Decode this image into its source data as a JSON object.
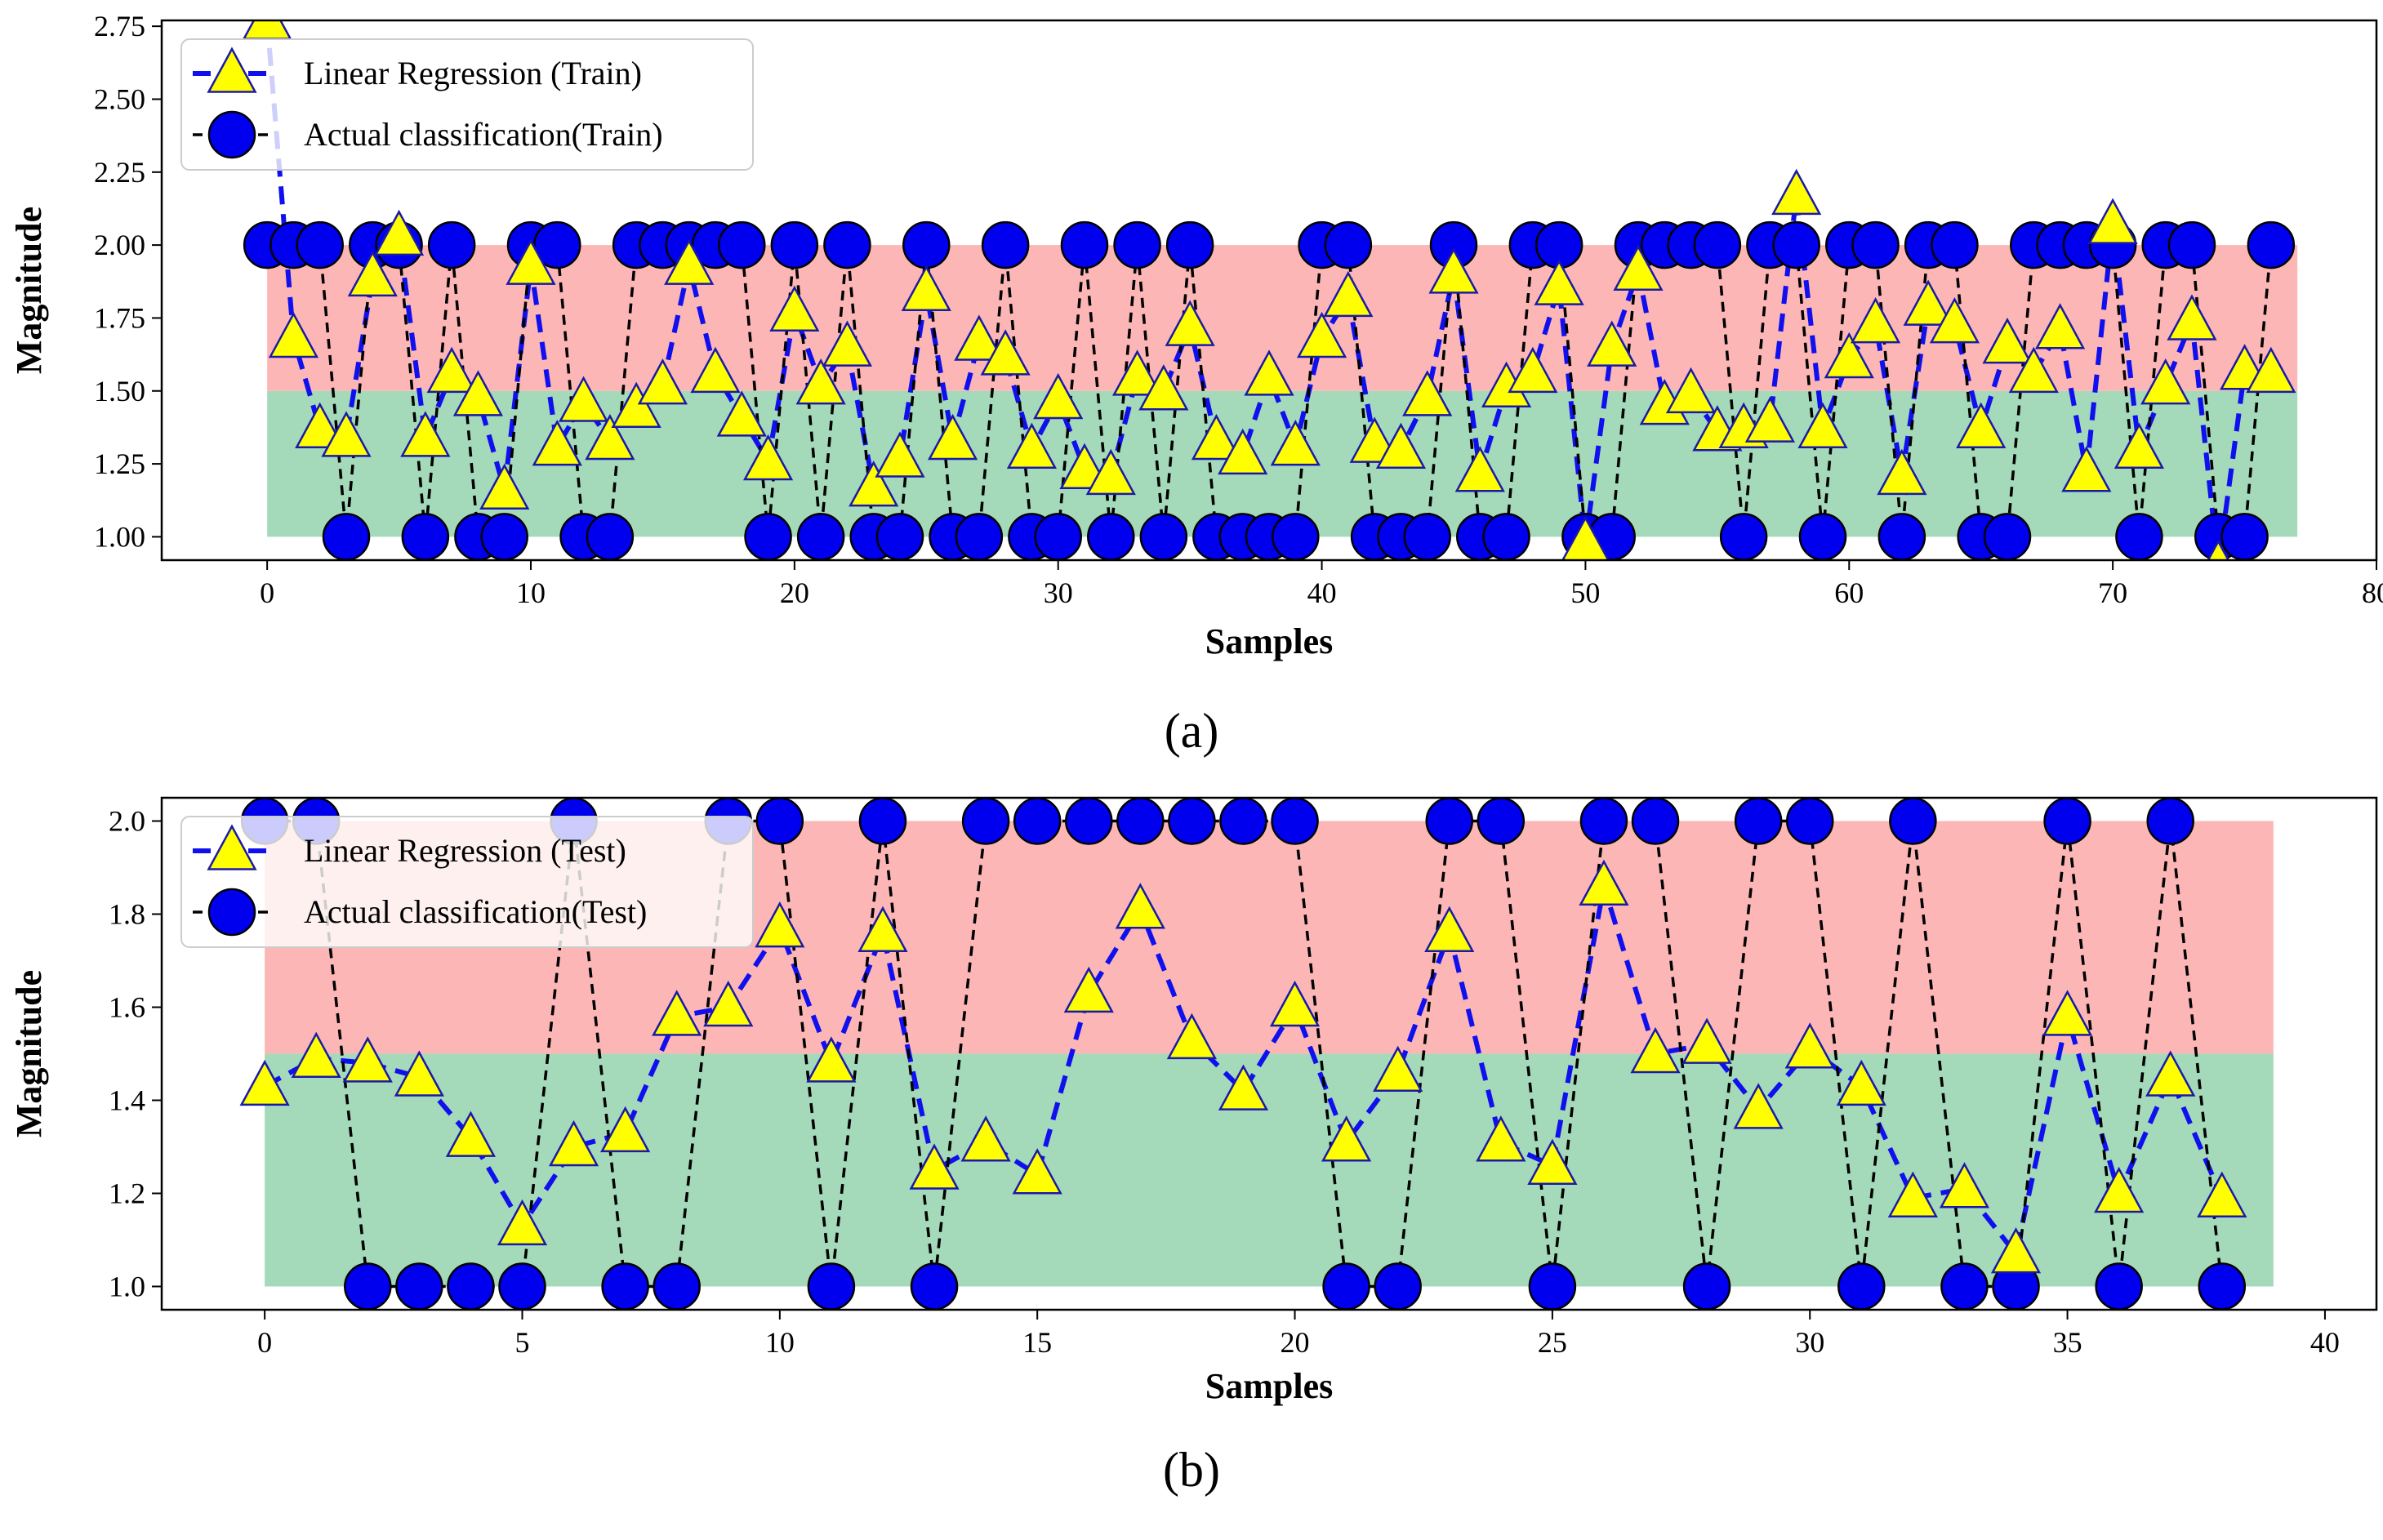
{
  "chart_data": [
    {
      "type": "line",
      "caption": "(a)",
      "xlabel": "Samples",
      "ylabel": "Magnitude",
      "xlim": [
        -4,
        80
      ],
      "ylim": [
        0.92,
        2.77
      ],
      "xticks": [
        0,
        10,
        20,
        30,
        40,
        50,
        60,
        70,
        80
      ],
      "yticks": [
        1.0,
        1.25,
        1.5,
        1.75,
        2.0,
        2.25,
        2.5,
        2.75
      ],
      "ytick_labels": [
        "1.00",
        "1.25",
        "1.50",
        "1.75",
        "2.00",
        "2.25",
        "2.50",
        "2.75"
      ],
      "bands": [
        {
          "from": 1.0,
          "to": 1.5,
          "x_from": 0,
          "x_to": 77,
          "color": "#9fd8b5"
        },
        {
          "from": 1.5,
          "to": 2.0,
          "x_from": 0,
          "x_to": 77,
          "color": "#fdb2b2"
        }
      ],
      "legend_position": "upper-left",
      "series": [
        {
          "name": "Linear Regression (Train)",
          "marker": "triangle",
          "line_style": "dashed",
          "line_color": "#1010ee",
          "marker_color": "#ffff00",
          "marker_edge": "#1a1aa8",
          "values": [
            2.77,
            1.68,
            1.37,
            1.34,
            1.89,
            2.03,
            1.34,
            1.56,
            1.48,
            1.16,
            1.93,
            1.31,
            1.46,
            1.33,
            1.44,
            1.52,
            1.93,
            1.56,
            1.41,
            1.26,
            1.77,
            1.52,
            1.65,
            1.17,
            1.27,
            1.84,
            1.33,
            1.67,
            1.62,
            1.3,
            1.47,
            1.23,
            1.21,
            1.55,
            1.5,
            1.72,
            1.33,
            1.28,
            1.55,
            1.31,
            1.68,
            1.82,
            1.32,
            1.3,
            1.48,
            1.9,
            1.22,
            1.51,
            1.56,
            1.86,
            0.98,
            1.65,
            1.91,
            1.45,
            1.49,
            1.36,
            1.37,
            1.39,
            2.17,
            1.37,
            1.61,
            1.73,
            1.21,
            1.79,
            1.73,
            1.37,
            1.66,
            1.56,
            1.71,
            1.22,
            2.07,
            1.3,
            1.52,
            1.74,
            0.9,
            1.57,
            1.56
          ]
        },
        {
          "name": "Actual classification(Train)",
          "marker": "circle",
          "line_style": "dashed",
          "line_color": "#000000",
          "marker_color": "#0000ee",
          "marker_edge": "#000000",
          "values": [
            2,
            2,
            2,
            1,
            2,
            2,
            1,
            2,
            1,
            1,
            2,
            2,
            1,
            1,
            2,
            2,
            2,
            2,
            2,
            1,
            2,
            1,
            2,
            1,
            1,
            2,
            1,
            1,
            2,
            1,
            1,
            2,
            1,
            2,
            1,
            2,
            1,
            1,
            1,
            1,
            2,
            2,
            1,
            1,
            1,
            2,
            1,
            1,
            2,
            2,
            1,
            1,
            2,
            2,
            2,
            2,
            1,
            2,
            2,
            1,
            2,
            2,
            1,
            2,
            2,
            1,
            1,
            2,
            2,
            2,
            2,
            1,
            2,
            2,
            1,
            1,
            2
          ]
        }
      ]
    },
    {
      "type": "line",
      "caption": "(b)",
      "xlabel": "Samples",
      "ylabel": "Magnitude",
      "xlim": [
        -2,
        41
      ],
      "ylim": [
        0.95,
        2.05
      ],
      "xticks": [
        0,
        5,
        10,
        15,
        20,
        25,
        30,
        35,
        40
      ],
      "yticks": [
        1.0,
        1.2,
        1.4,
        1.6,
        1.8,
        2.0
      ],
      "ytick_labels": [
        "1.0",
        "1.2",
        "1.4",
        "1.6",
        "1.8",
        "2.0"
      ],
      "bands": [
        {
          "from": 1.0,
          "to": 1.5,
          "x_from": 0,
          "x_to": 39,
          "color": "#9fd8b5"
        },
        {
          "from": 1.5,
          "to": 2.0,
          "x_from": 0,
          "x_to": 39,
          "color": "#fdb2b2"
        }
      ],
      "legend_position": "upper-left",
      "series": [
        {
          "name": "Linear Regression (Test)",
          "marker": "triangle",
          "line_style": "dashed",
          "line_color": "#1010ee",
          "marker_color": "#ffff00",
          "marker_edge": "#1a1aa8",
          "values": [
            1.43,
            1.49,
            1.48,
            1.45,
            1.32,
            1.13,
            1.3,
            1.33,
            1.58,
            1.6,
            1.77,
            1.48,
            1.76,
            1.25,
            1.31,
            1.24,
            1.63,
            1.81,
            1.53,
            1.42,
            1.6,
            1.31,
            1.46,
            1.76,
            1.31,
            1.26,
            1.86,
            1.5,
            1.52,
            1.38,
            1.51,
            1.43,
            1.19,
            1.21,
            1.07,
            1.58,
            1.2,
            1.45,
            1.19
          ]
        },
        {
          "name": "Actual classification(Test)",
          "marker": "circle",
          "line_style": "dashed",
          "line_color": "#000000",
          "marker_color": "#0000ee",
          "marker_edge": "#000000",
          "values": [
            2,
            2,
            1,
            1,
            1,
            1,
            2,
            1,
            1,
            2,
            2,
            1,
            2,
            1,
            2,
            2,
            2,
            2,
            2,
            2,
            2,
            1,
            1,
            2,
            2,
            1,
            2,
            2,
            1,
            2,
            2,
            1,
            2,
            1,
            1,
            2,
            1,
            2,
            1
          ]
        }
      ]
    }
  ]
}
